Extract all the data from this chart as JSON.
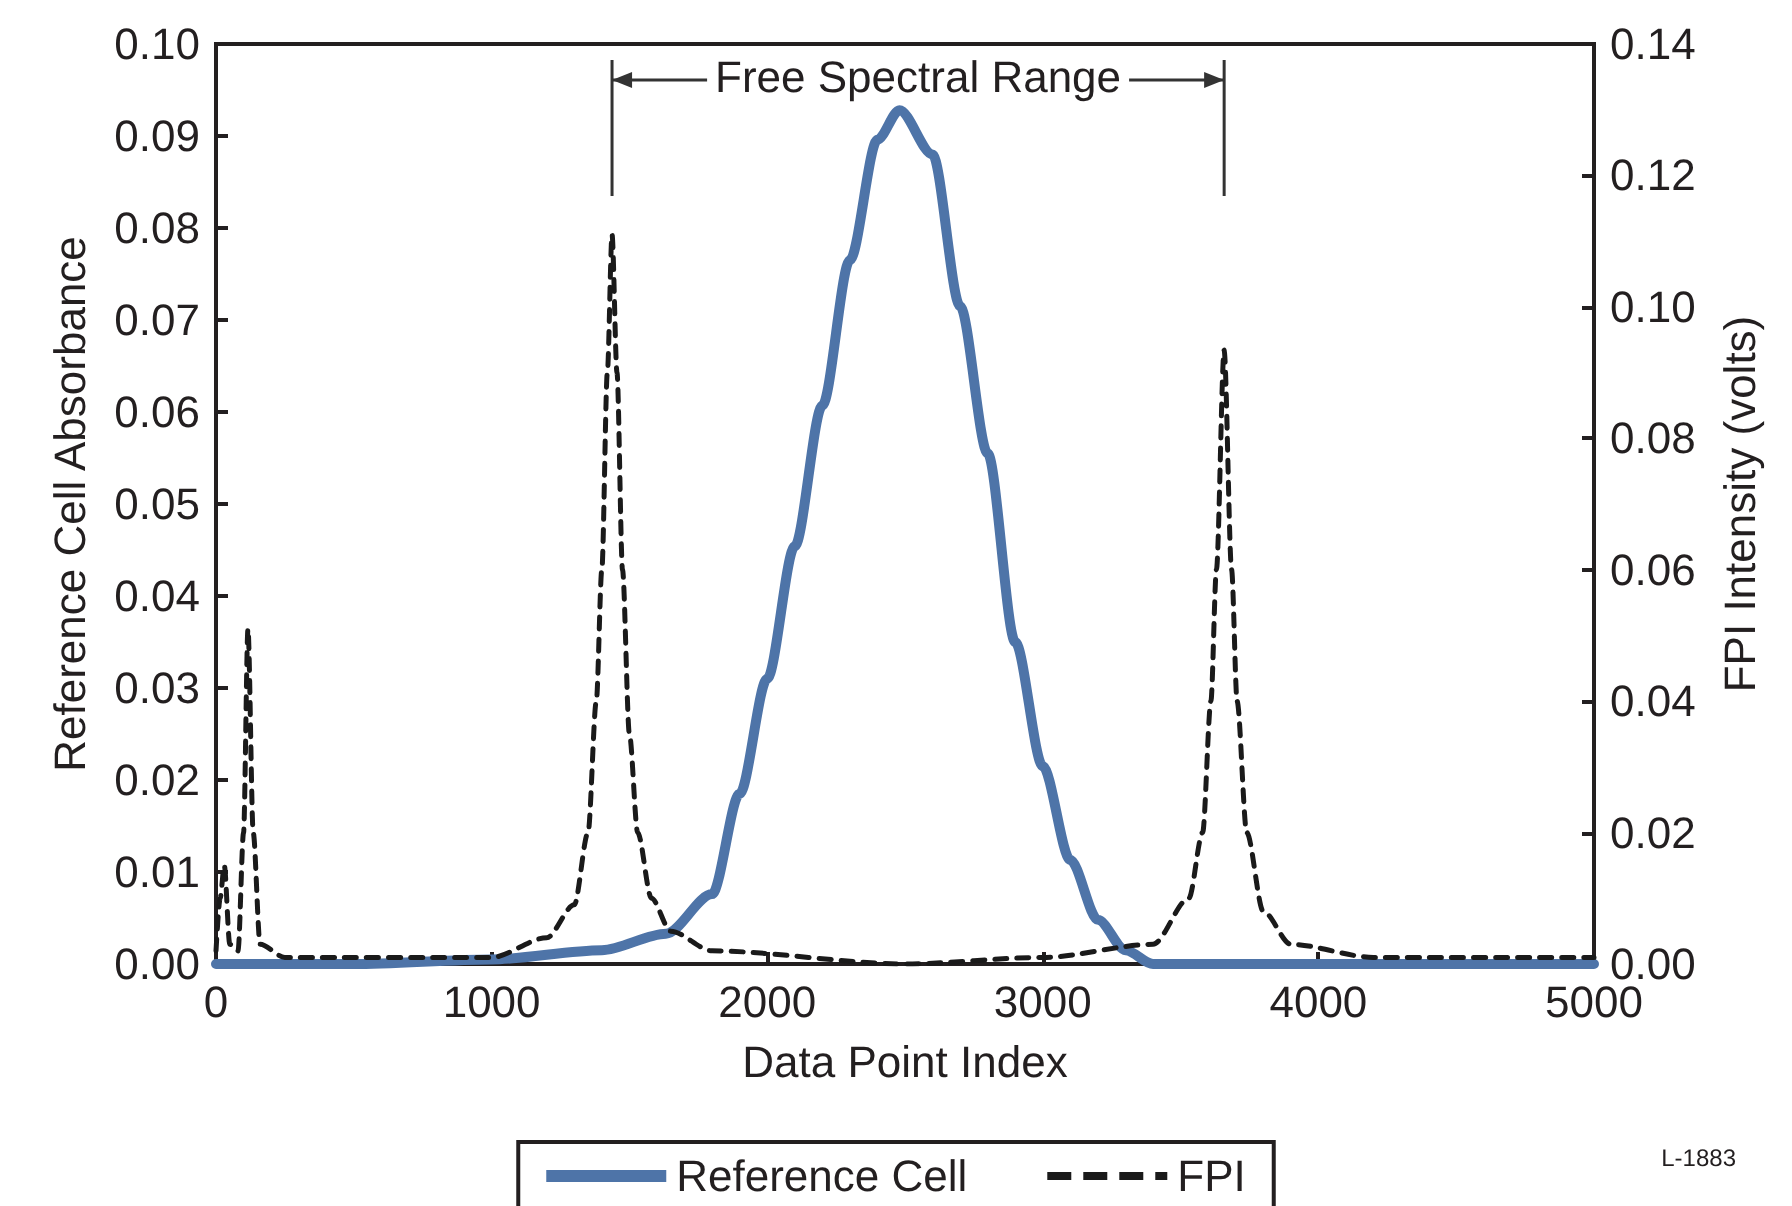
{
  "chart_data": {
    "type": "line",
    "xlabel": "Data Point Index",
    "ylabel": "Reference Cell Absorbance",
    "y2label": "FPI Intensity (volts)",
    "annotations": [
      "Free Spectral Range",
      "L-1883"
    ],
    "xlim": [
      0,
      5000
    ],
    "xticks": [
      0,
      1000,
      2000,
      3000,
      4000,
      5000
    ],
    "ylim": [
      0,
      0.1
    ],
    "yticks": [
      {
        "value": 0,
        "label": "0.00"
      },
      {
        "value": 0.01,
        "label": "0.01"
      },
      {
        "value": 0.02,
        "label": "0.02"
      },
      {
        "value": 0.03,
        "label": "0.03"
      },
      {
        "value": 0.04,
        "label": "0.04"
      },
      {
        "value": 0.05,
        "label": "0.05"
      },
      {
        "value": 0.06,
        "label": "0.06"
      },
      {
        "value": 0.07,
        "label": "0.07"
      },
      {
        "value": 0.08,
        "label": "0.08"
      },
      {
        "value": 0.09,
        "label": "0.09"
      },
      {
        "value": 0.1,
        "label": "0.10"
      }
    ],
    "y2lim": [
      0,
      0.14
    ],
    "y2ticks": [
      {
        "value": 0,
        "label": "0.00"
      },
      {
        "value": 0.02,
        "label": "0.02"
      },
      {
        "value": 0.04,
        "label": "0.04"
      },
      {
        "value": 0.06,
        "label": "0.06"
      },
      {
        "value": 0.08,
        "label": "0.08"
      },
      {
        "value": 0.1,
        "label": "0.10"
      },
      {
        "value": 0.12,
        "label": "0.12"
      },
      {
        "value": 0.14,
        "label": "0.14"
      }
    ],
    "grid": false,
    "legend": "bottom",
    "marker": "none",
    "series": [
      {
        "name": "Reference Cell",
        "color": "#4e74a8",
        "line_style": "solid",
        "x": [
          0,
          500,
          1000,
          1400,
          1633,
          1800,
          1900,
          2000,
          2100,
          2200,
          2300,
          2400,
          2480,
          2600,
          2700,
          2800,
          2900,
          3000,
          3100,
          3200,
          3300,
          3400,
          3500,
          3700,
          4000,
          4100,
          5000
        ],
        "values": [
          0,
          0,
          0.0005,
          0.0015,
          0.0033,
          0.0076,
          0.0185,
          0.031,
          0.0454,
          0.0607,
          0.0765,
          0.0896,
          0.0928,
          0.088,
          0.0715,
          0.0555,
          0.035,
          0.0215,
          0.0113,
          0.0048,
          0.0015,
          0,
          0,
          0,
          0,
          0,
          0
        ]
      },
      {
        "name": "FPI",
        "color": "#1a1a1a",
        "line_style": "dashed",
        "axis": "y2",
        "x": [
          0,
          15,
          30,
          50,
          80,
          100,
          116,
          135,
          160,
          250,
          1000,
          1200,
          1300,
          1350,
          1380,
          1400,
          1420,
          1437,
          1455,
          1475,
          1500,
          1530,
          1580,
          1650,
          1800,
          2500,
          3000,
          3400,
          3530,
          3580,
          3610,
          3630,
          3658,
          3685,
          3705,
          3740,
          3800,
          3900,
          4200,
          5000
        ],
        "values": [
          0.002,
          0.01,
          0.015,
          0.003,
          0.002,
          0.02,
          0.051,
          0.02,
          0.003,
          0.001,
          0.001,
          0.004,
          0.009,
          0.02,
          0.04,
          0.06,
          0.09,
          0.111,
          0.09,
          0.06,
          0.035,
          0.02,
          0.01,
          0.005,
          0.002,
          0,
          0.001,
          0.003,
          0.01,
          0.02,
          0.04,
          0.06,
          0.0934,
          0.06,
          0.04,
          0.02,
          0.008,
          0.003,
          0.001,
          0.001
        ]
      }
    ]
  }
}
